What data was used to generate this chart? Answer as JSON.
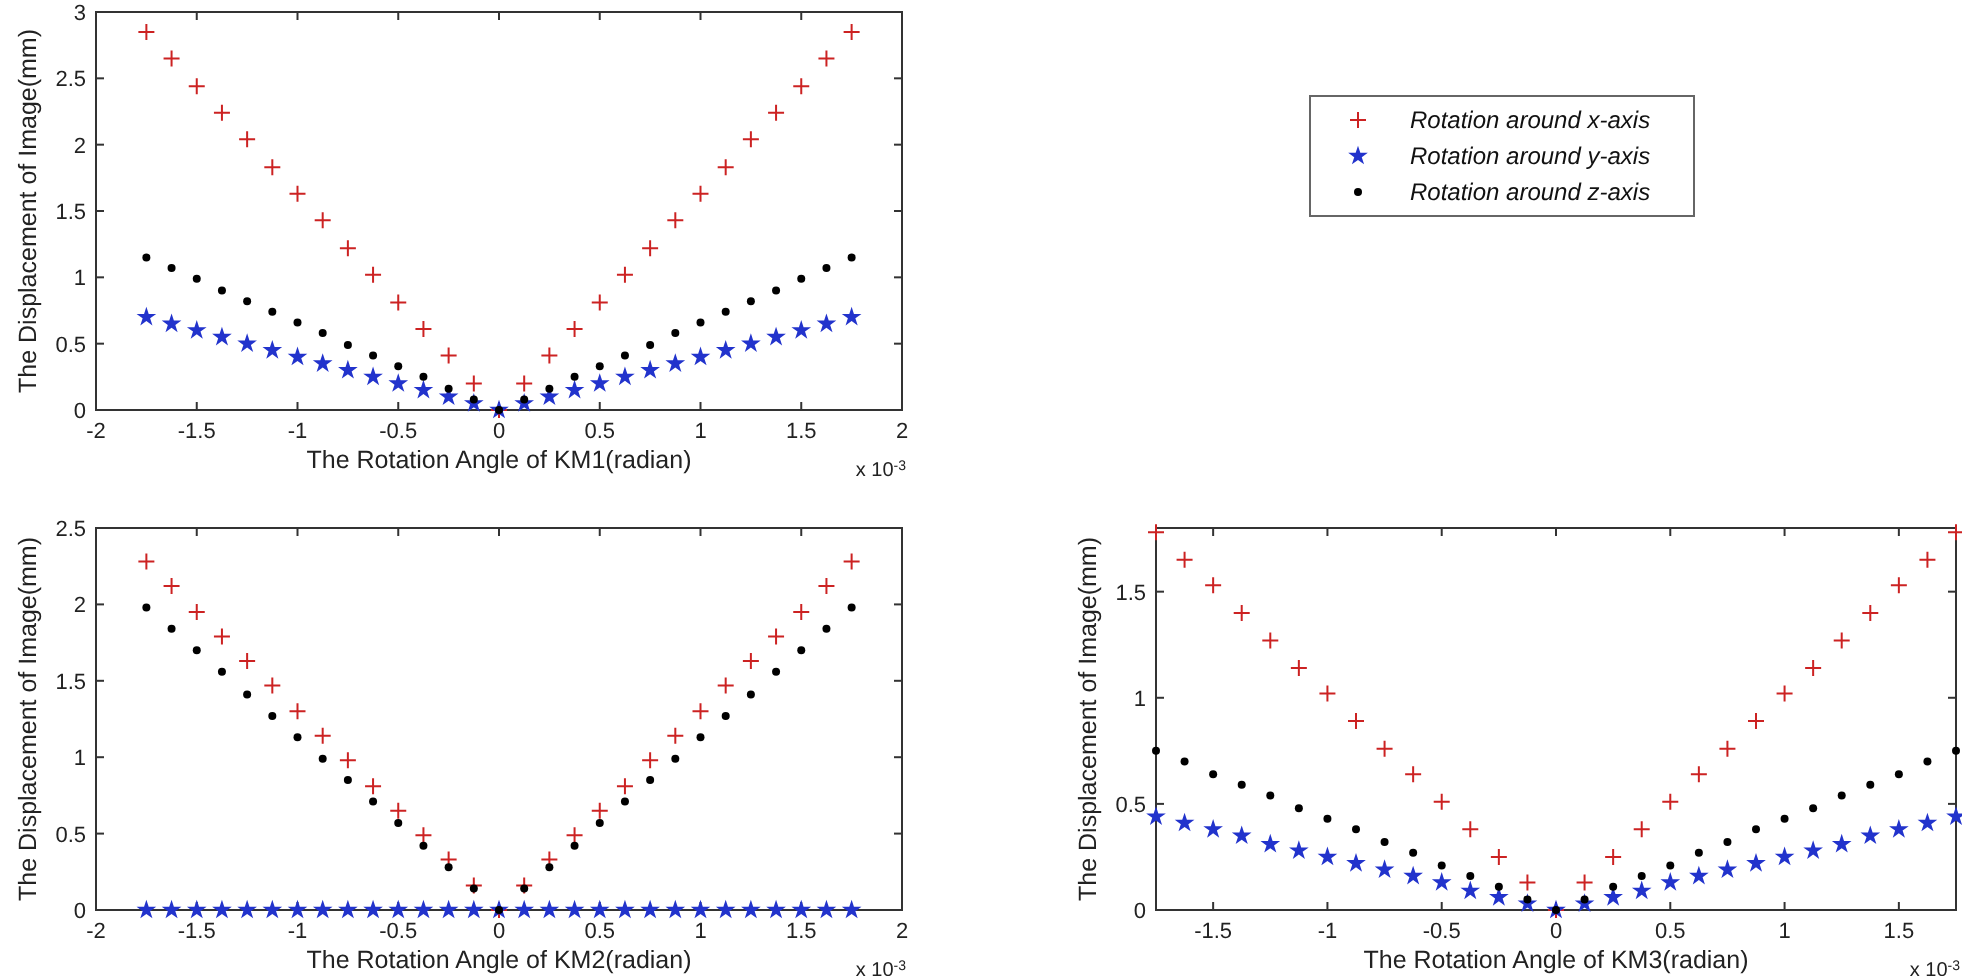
{
  "chart_data": [
    {
      "type": "scatter",
      "xlabel": "The Rotation Angle of KM1(radian)",
      "ylabel": "The Displacement of Image(mm)",
      "annotations": [
        "x 10$^{-3}$"
      ],
      "xlim": [
        -2,
        2
      ],
      "xticks": [
        -2,
        -1.5,
        -1,
        -0.5,
        0,
        0.5,
        1,
        1.5,
        2
      ],
      "ylim": [
        0,
        3
      ],
      "yticks": [
        0,
        0.5,
        1,
        1.5,
        2,
        2.5,
        3
      ],
      "legend": "right",
      "grid": false,
      "x": [
        -1.75,
        -1.625,
        -1.5,
        -1.375,
        -1.25,
        -1.125,
        -1,
        -0.875,
        -0.75,
        -0.625,
        -0.5,
        -0.375,
        -0.25,
        -0.125,
        0,
        0.125,
        0.25,
        0.375,
        0.5,
        0.625,
        0.75,
        0.875,
        1,
        1.125,
        1.25,
        1.375,
        1.5,
        1.625,
        1.75
      ],
      "series": [
        {
          "name": "Rotation around x-axis",
          "color": "#cc2222",
          "marker": "cross",
          "values": [
            2.85,
            2.65,
            2.44,
            2.24,
            2.04,
            1.83,
            1.63,
            1.43,
            1.22,
            1.02,
            0.81,
            0.61,
            0.41,
            0.2,
            0,
            0.2,
            0.41,
            0.61,
            0.81,
            1.02,
            1.22,
            1.43,
            1.63,
            1.83,
            2.04,
            2.24,
            2.44,
            2.65,
            2.85
          ]
        },
        {
          "name": "Rotation around y-axis",
          "color": "#2233cc",
          "marker": "star",
          "values": [
            0.7,
            0.65,
            0.6,
            0.55,
            0.5,
            0.45,
            0.4,
            0.35,
            0.3,
            0.25,
            0.2,
            0.15,
            0.1,
            0.05,
            0,
            0.05,
            0.1,
            0.15,
            0.2,
            0.25,
            0.3,
            0.35,
            0.4,
            0.45,
            0.5,
            0.55,
            0.6,
            0.65,
            0.7
          ]
        },
        {
          "name": "Rotation around z-axis",
          "color": "#000000",
          "marker": "circle",
          "values": [
            1.15,
            1.07,
            0.99,
            0.9,
            0.82,
            0.74,
            0.66,
            0.58,
            0.49,
            0.41,
            0.33,
            0.25,
            0.16,
            0.08,
            0,
            0.08,
            0.16,
            0.25,
            0.33,
            0.41,
            0.49,
            0.58,
            0.66,
            0.74,
            0.82,
            0.9,
            0.99,
            1.07,
            1.15
          ]
        }
      ]
    },
    {
      "type": "scatter",
      "xlabel": "The Rotation Angle of KM2(radian)",
      "ylabel": "The Displacement of Image(mm)",
      "annotations": [
        "x 10$^{-3}$"
      ],
      "xlim": [
        -2,
        2
      ],
      "xticks": [
        -2,
        -1.5,
        -1,
        -0.5,
        0,
        0.5,
        1,
        1.5,
        2
      ],
      "ylim": [
        0,
        2.5
      ],
      "yticks": [
        0,
        0.5,
        1,
        1.5,
        2,
        2.5
      ],
      "grid": false,
      "x": [
        -1.75,
        -1.625,
        -1.5,
        -1.375,
        -1.25,
        -1.125,
        -1,
        -0.875,
        -0.75,
        -0.625,
        -0.5,
        -0.375,
        -0.25,
        -0.125,
        0,
        0.125,
        0.25,
        0.375,
        0.5,
        0.625,
        0.75,
        0.875,
        1,
        1.125,
        1.25,
        1.375,
        1.5,
        1.625,
        1.75
      ],
      "series": [
        {
          "color": "#cc2222",
          "marker": "cross",
          "values": [
            2.28,
            2.12,
            1.95,
            1.79,
            1.63,
            1.47,
            1.3,
            1.14,
            0.98,
            0.81,
            0.65,
            0.49,
            0.33,
            0.16,
            0,
            0.16,
            0.33,
            0.49,
            0.65,
            0.81,
            0.98,
            1.14,
            1.3,
            1.47,
            1.63,
            1.79,
            1.95,
            2.12,
            2.28
          ]
        },
        {
          "color": "#2233cc",
          "marker": "star",
          "values": [
            0,
            0,
            0,
            0,
            0,
            0,
            0,
            0,
            0,
            0,
            0,
            0,
            0,
            0,
            0,
            0,
            0,
            0,
            0,
            0,
            0,
            0,
            0,
            0,
            0,
            0,
            0,
            0,
            0
          ]
        },
        {
          "color": "#000000",
          "marker": "circle",
          "values": [
            1.98,
            1.84,
            1.7,
            1.56,
            1.41,
            1.27,
            1.13,
            0.99,
            0.85,
            0.71,
            0.57,
            0.42,
            0.28,
            0.14,
            0,
            0.14,
            0.28,
            0.42,
            0.57,
            0.71,
            0.85,
            0.99,
            1.13,
            1.27,
            1.41,
            1.56,
            1.7,
            1.84,
            1.98
          ]
        }
      ]
    },
    {
      "type": "scatter",
      "xlabel": "The Rotation Angle of KM3(radian)",
      "ylabel": "The Displacement of Image(mm)",
      "annotations": [
        "x 10$^{-3}$"
      ],
      "xlim": [
        -1.75,
        1.75
      ],
      "xticks": [
        -1.5,
        -1,
        -0.5,
        0,
        0.5,
        1,
        1.5
      ],
      "ylim": [
        0,
        1.8
      ],
      "yticks": [
        0,
        0.5,
        1,
        1.5
      ],
      "grid": false,
      "x": [
        -1.75,
        -1.625,
        -1.5,
        -1.375,
        -1.25,
        -1.125,
        -1,
        -0.875,
        -0.75,
        -0.625,
        -0.5,
        -0.375,
        -0.25,
        -0.125,
        0,
        0.125,
        0.25,
        0.375,
        0.5,
        0.625,
        0.75,
        0.875,
        1,
        1.125,
        1.25,
        1.375,
        1.5,
        1.625,
        1.75
      ],
      "series": [
        {
          "color": "#cc2222",
          "marker": "cross",
          "values": [
            1.78,
            1.65,
            1.53,
            1.4,
            1.27,
            1.14,
            1.02,
            0.89,
            0.76,
            0.64,
            0.51,
            0.38,
            0.25,
            0.13,
            0,
            0.13,
            0.25,
            0.38,
            0.51,
            0.64,
            0.76,
            0.89,
            1.02,
            1.14,
            1.27,
            1.4,
            1.53,
            1.65,
            1.78
          ]
        },
        {
          "color": "#2233cc",
          "marker": "star",
          "values": [
            0.44,
            0.41,
            0.38,
            0.35,
            0.31,
            0.28,
            0.25,
            0.22,
            0.19,
            0.16,
            0.13,
            0.09,
            0.06,
            0.03,
            0,
            0.03,
            0.06,
            0.09,
            0.13,
            0.16,
            0.19,
            0.22,
            0.25,
            0.28,
            0.31,
            0.35,
            0.38,
            0.41,
            0.44
          ]
        },
        {
          "color": "#000000",
          "marker": "circle",
          "values": [
            0.75,
            0.7,
            0.64,
            0.59,
            0.54,
            0.48,
            0.43,
            0.38,
            0.32,
            0.27,
            0.21,
            0.16,
            0.11,
            0.05,
            0,
            0.05,
            0.11,
            0.16,
            0.21,
            0.27,
            0.32,
            0.38,
            0.43,
            0.48,
            0.54,
            0.59,
            0.64,
            0.7,
            0.75
          ]
        }
      ]
    }
  ]
}
